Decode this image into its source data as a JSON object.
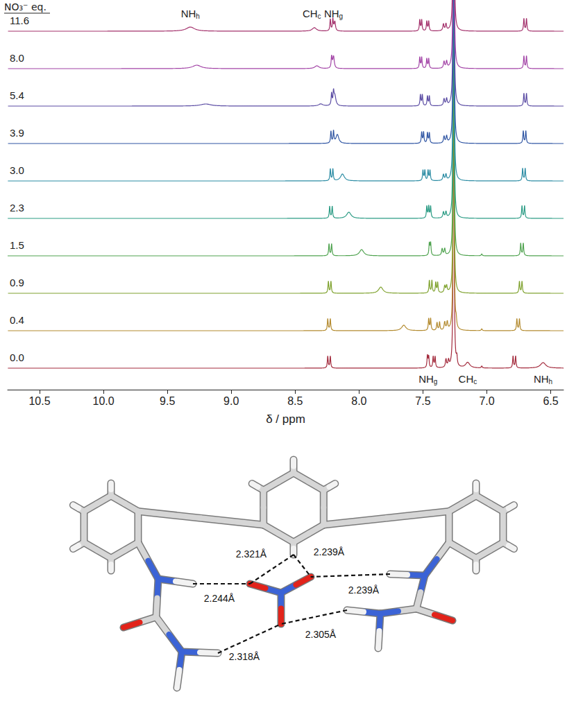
{
  "chart_data": {
    "type": "line",
    "series_title": "NO₃⁻ eq.",
    "x_label": "δ / ppm",
    "xlim": [
      6.4,
      10.75
    ],
    "xticks": [
      6.5,
      {
        "value": 7,
        "label": "7.0"
      },
      7.5,
      {
        "value": 8,
        "label": "8.0"
      },
      8.5,
      {
        "value": 9,
        "label": "9.0"
      },
      9.5,
      {
        "value": 10,
        "label": "10.0"
      },
      10.5
    ],
    "tick_labels": "x",
    "grid": false,
    "series": [
      {
        "name": "11.6",
        "color": "#a3306b",
        "ppm": [
          9.32,
          8.35,
          8.225,
          8.205,
          8.19,
          7.525,
          7.51,
          7.47,
          7.455,
          7.34,
          7.32,
          7.26,
          6.71,
          6.69
        ],
        "heights": [
          6,
          5,
          17,
          17,
          14,
          16,
          16,
          14,
          14,
          10,
          10,
          700,
          18,
          18
        ],
        "widths": [
          0.04,
          0.02,
          0.004,
          0.004,
          0.006,
          0.004,
          0.004,
          0.004,
          0.004,
          0.005,
          0.005,
          0.003,
          0.004,
          0.004
        ]
      },
      {
        "name": "8.0",
        "color": "#a243a6",
        "ppm": [
          9.27,
          8.33,
          8.215,
          8.2,
          7.525,
          7.51,
          7.47,
          7.455,
          7.335,
          7.315,
          7.26,
          6.71,
          6.69
        ],
        "heights": [
          5,
          4,
          17,
          18,
          16,
          16,
          14,
          14,
          10,
          10,
          700,
          18,
          18
        ],
        "widths": [
          0.04,
          0.02,
          0.004,
          0.007,
          0.004,
          0.004,
          0.004,
          0.004,
          0.005,
          0.005,
          0.003,
          0.004,
          0.004
        ]
      },
      {
        "name": "5.4",
        "color": "#5a4ba3",
        "ppm": [
          9.2,
          8.3,
          8.215,
          8.2,
          8.19,
          7.52,
          7.505,
          7.465,
          7.45,
          7.335,
          7.315,
          7.26,
          6.71,
          6.69
        ],
        "heights": [
          3,
          3,
          17,
          17,
          15,
          16,
          16,
          14,
          14,
          10,
          10,
          700,
          18,
          18
        ],
        "widths": [
          0.05,
          0.02,
          0.004,
          0.004,
          0.01,
          0.004,
          0.004,
          0.004,
          0.004,
          0.005,
          0.005,
          0.003,
          0.004,
          0.004
        ]
      },
      {
        "name": "3.9",
        "color": "#2f55a3",
        "ppm": [
          8.22,
          8.2,
          8.17,
          7.51,
          7.495,
          7.465,
          7.45,
          7.335,
          7.315,
          7.26,
          6.715,
          6.695
        ],
        "heights": [
          17,
          17,
          13,
          16,
          16,
          15,
          15,
          10,
          10,
          700,
          18,
          18
        ],
        "widths": [
          0.004,
          0.004,
          0.013,
          0.004,
          0.004,
          0.004,
          0.004,
          0.005,
          0.005,
          0.003,
          0.004,
          0.004
        ]
      },
      {
        "name": "3.0",
        "color": "#2a8ba3",
        "ppm": [
          8.225,
          8.205,
          8.13,
          7.5,
          7.485,
          7.46,
          7.445,
          7.34,
          7.32,
          7.26,
          6.72,
          6.7
        ],
        "heights": [
          17,
          17,
          10,
          15,
          15,
          15,
          15,
          9,
          9,
          700,
          18,
          18
        ],
        "widths": [
          0.004,
          0.004,
          0.018,
          0.004,
          0.004,
          0.004,
          0.004,
          0.005,
          0.005,
          0.003,
          0.004,
          0.004
        ]
      },
      {
        "name": "2.3",
        "color": "#2a9b84",
        "ppm": [
          8.23,
          8.21,
          8.08,
          7.47,
          7.455,
          7.44,
          7.34,
          7.32,
          7.26,
          6.725,
          6.705
        ],
        "heights": [
          17,
          17,
          9,
          17,
          17,
          17,
          9,
          9,
          700,
          18,
          18
        ],
        "widths": [
          0.004,
          0.004,
          0.02,
          0.004,
          0.004,
          0.004,
          0.005,
          0.005,
          0.003,
          0.004,
          0.004
        ]
      },
      {
        "name": "1.5",
        "color": "#4ea24e",
        "ppm": [
          8.235,
          8.215,
          7.98,
          7.45,
          7.44,
          7.35,
          7.33,
          7.26,
          7.04,
          6.735,
          6.715
        ],
        "heights": [
          17,
          17,
          9,
          18,
          18,
          10,
          10,
          700,
          3,
          18,
          18
        ],
        "widths": [
          0.004,
          0.004,
          0.02,
          0.004,
          0.004,
          0.005,
          0.005,
          0.003,
          0.004,
          0.004,
          0.004
        ]
      },
      {
        "name": "0.9",
        "color": "#7fa22e",
        "ppm": [
          8.24,
          8.22,
          7.83,
          7.45,
          7.43,
          7.4,
          7.385,
          7.33,
          7.315,
          7.26,
          6.745,
          6.725
        ],
        "heights": [
          17,
          17,
          9,
          18,
          18,
          15,
          15,
          10,
          10,
          700,
          17,
          17
        ],
        "widths": [
          0.004,
          0.004,
          0.02,
          0.004,
          0.004,
          0.004,
          0.004,
          0.005,
          0.005,
          0.003,
          0.004,
          0.004
        ]
      },
      {
        "name": "0.4",
        "color": "#b38a2e",
        "ppm": [
          8.245,
          8.225,
          7.65,
          7.455,
          7.44,
          7.39,
          7.37,
          7.33,
          7.31,
          7.26,
          7.24,
          7.04,
          6.765,
          6.745
        ],
        "heights": [
          17,
          17,
          8,
          17,
          17,
          12,
          12,
          12,
          12,
          700,
          10,
          3,
          17,
          17
        ],
        "widths": [
          0.004,
          0.004,
          0.02,
          0.004,
          0.004,
          0.004,
          0.004,
          0.005,
          0.005,
          0.003,
          0.004,
          0.004,
          0.004,
          0.004
        ]
      },
      {
        "name": "0.0",
        "color": "#a32a3c",
        "ppm": [
          8.245,
          8.225,
          7.465,
          7.455,
          7.42,
          7.405,
          7.32,
          7.3,
          7.26,
          7.235,
          7.15,
          7.04,
          6.795,
          6.775,
          6.56
        ],
        "heights": [
          17,
          17,
          18,
          16,
          16,
          16,
          12,
          10,
          700,
          12,
          8,
          3,
          17,
          17,
          8
        ],
        "widths": [
          0.004,
          0.004,
          0.004,
          0.004,
          0.004,
          0.004,
          0.005,
          0.005,
          0.003,
          0.004,
          0.02,
          0.004,
          0.004,
          0.004,
          0.025
        ]
      }
    ],
    "annotations": [
      {
        "text": "NH",
        "sub": "h",
        "ppm": 9.32,
        "series": "11.6"
      },
      {
        "text": "CH",
        "sub": "c",
        "ppm": 8.37,
        "series": "11.6"
      },
      {
        "text": "NH",
        "sub": "g",
        "ppm": 8.2,
        "series": "11.6"
      },
      {
        "text": "NH",
        "sub": "g",
        "ppm": 7.46,
        "series": "0.0"
      },
      {
        "text": "CH",
        "sub": "c",
        "ppm": 7.15,
        "series": "0.0"
      },
      {
        "text": "NH",
        "sub": "h",
        "ppm": 6.56,
        "series": "0.0"
      }
    ]
  },
  "structure": {
    "hydrogen_bonds": [
      "2.321Å",
      "2.239Å",
      "2.244Å",
      "2.239Å",
      "2.318Å",
      "2.305Å"
    ]
  }
}
